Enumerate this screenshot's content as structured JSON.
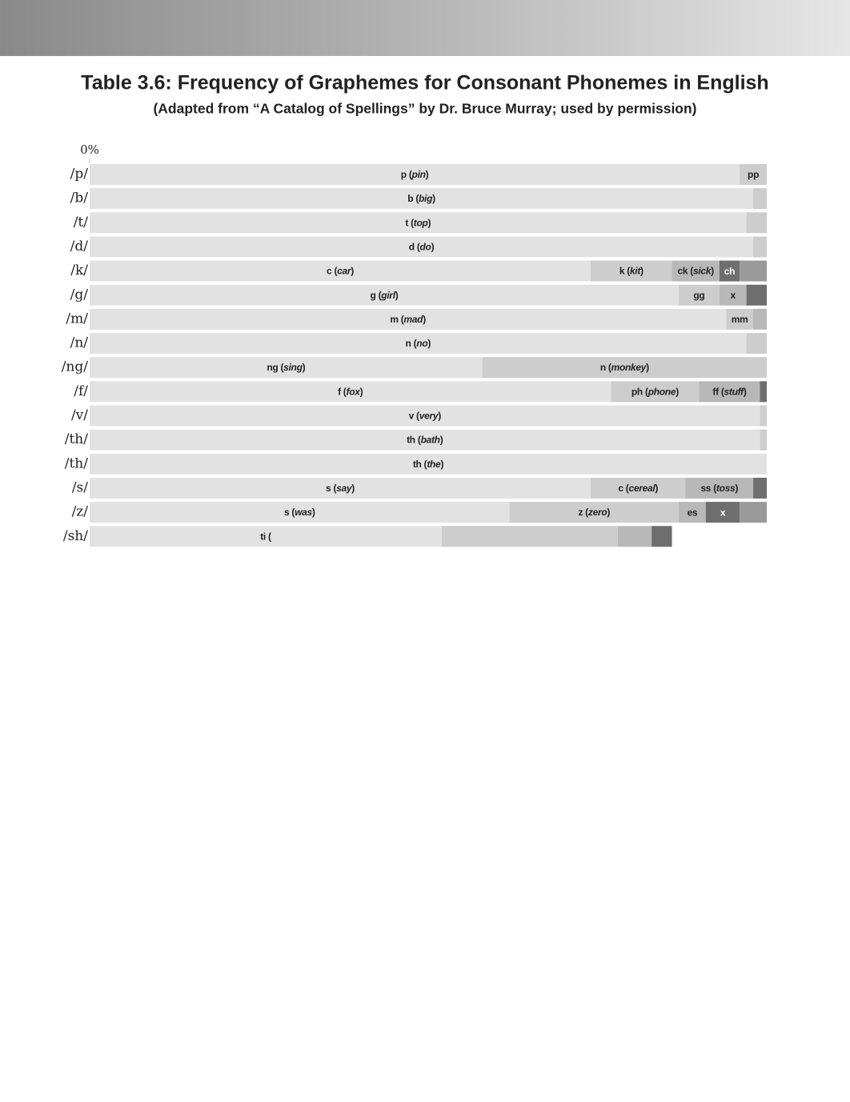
{
  "chart_data": {
    "type": "stacked-bar",
    "title": "Table 3.6: Frequency of Graphemes for Consonant Phonemes in English",
    "subtitle": "(Adapted from “A Catalog of Spellings” by Dr. Bruce Murray; used by permission)",
    "xlim": [
      0,
      100
    ],
    "xticks": [
      {
        "value": 0,
        "label": "0%"
      }
    ],
    "categories": [
      "/p/",
      "/b/",
      "/t/",
      "/d/",
      "/k/",
      "/g/",
      "/m/",
      "/n/",
      "/ng/",
      "/f/",
      "/v/",
      "/th/",
      "/th/",
      "/s/",
      "/z/",
      "/sh/"
    ],
    "colors": [
      "#e2e2e2",
      "#cdcdcd",
      "#b8b8b8",
      "#6e6e6e",
      "#9a9a9a"
    ],
    "rows": [
      {
        "segments": [
          {
            "label": "p (pin)",
            "italic": "pin",
            "value": 96
          },
          {
            "label": "pp",
            "value": 4
          }
        ]
      },
      {
        "segments": [
          {
            "label": "b (big)",
            "italic": "big",
            "value": 98
          },
          {
            "label": null,
            "value": 2
          }
        ]
      },
      {
        "segments": [
          {
            "label": "t (top)",
            "italic": "top",
            "value": 97
          },
          {
            "label": null,
            "value": 3
          }
        ]
      },
      {
        "segments": [
          {
            "label": "d (do)",
            "italic": "do",
            "value": 98
          },
          {
            "label": null,
            "value": 2
          }
        ]
      },
      {
        "segments": [
          {
            "label": "c (car)",
            "italic": "car",
            "value": 74
          },
          {
            "label": "k (kit)",
            "italic": "kit",
            "value": 12
          },
          {
            "label": "ck (sick)",
            "italic": "sick",
            "value": 7
          },
          {
            "label": "ch",
            "value": 3
          },
          {
            "label": null,
            "value": 4
          }
        ]
      },
      {
        "segments": [
          {
            "label": "g (girl)",
            "italic": "girl",
            "value": 87
          },
          {
            "label": "gg",
            "value": 6
          },
          {
            "label": "x",
            "value": 4
          },
          {
            "label": null,
            "value": 3
          }
        ]
      },
      {
        "segments": [
          {
            "label": "m (mad)",
            "italic": "mad",
            "value": 94
          },
          {
            "label": "mm",
            "value": 4
          },
          {
            "label": null,
            "value": 2
          }
        ]
      },
      {
        "segments": [
          {
            "label": "n (no)",
            "italic": "no",
            "value": 97
          },
          {
            "label": null,
            "value": 3
          }
        ]
      },
      {
        "segments": [
          {
            "label": "ng (sing)",
            "italic": "sing",
            "value": 58
          },
          {
            "label": "n (monkey)",
            "italic": "monkey",
            "value": 42
          }
        ]
      },
      {
        "segments": [
          {
            "label": "f (fox)",
            "italic": "fox",
            "value": 77
          },
          {
            "label": "ph (phone)",
            "italic": "phone",
            "value": 13
          },
          {
            "label": "ff (stuff)",
            "italic": "stuff",
            "value": 9
          },
          {
            "label": null,
            "value": 1
          }
        ]
      },
      {
        "segments": [
          {
            "label": "v (very)",
            "italic": "very",
            "value": 99
          },
          {
            "label": null,
            "value": 1
          }
        ]
      },
      {
        "segments": [
          {
            "label": "th (bath)",
            "italic": "bath",
            "value": 99
          },
          {
            "label": null,
            "value": 1
          }
        ]
      },
      {
        "segments": [
          {
            "label": "th (the)",
            "italic": "the",
            "value": 100
          }
        ]
      },
      {
        "segments": [
          {
            "label": "s (say)",
            "italic": "say",
            "value": 74
          },
          {
            "label": "c (cereal)",
            "italic": "cereal",
            "value": 14
          },
          {
            "label": "ss (toss)",
            "italic": "toss",
            "value": 10
          },
          {
            "label": null,
            "value": 2
          }
        ]
      },
      {
        "segments": [
          {
            "label": "s (was)",
            "italic": "was",
            "value": 62
          },
          {
            "label": "z (zero)",
            "italic": "zero",
            "value": 25
          },
          {
            "label": "es",
            "value": 4
          },
          {
            "label": "x",
            "value": 5
          },
          {
            "label": null,
            "value": 4
          }
        ]
      },
      {
        "segments": [
          {
            "label": "ti (",
            "value": 52
          },
          {
            "label": null,
            "value": 26
          },
          {
            "label": null,
            "value": 5
          },
          {
            "label": null,
            "value": 3
          }
        ]
      }
    ]
  }
}
